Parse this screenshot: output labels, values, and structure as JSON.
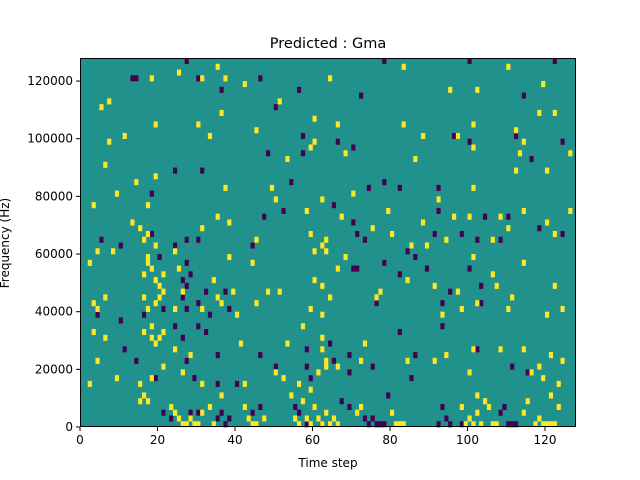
{
  "chart_data": {
    "type": "heatmap",
    "title": "Predicted : Gma",
    "xlabel": "Time step",
    "ylabel": "Frequency (Hz)",
    "xlim": [
      0,
      128
    ],
    "ylim": [
      0,
      128000
    ],
    "xticks": [
      0,
      20,
      40,
      60,
      80,
      100,
      120
    ],
    "yticks": [
      0,
      20000,
      40000,
      60000,
      80000,
      100000,
      120000
    ],
    "bin_size": {
      "x": 1,
      "y": 2000
    },
    "grid": false,
    "legend": "none",
    "colors": {
      "low": "#440154",
      "mid": "#21918c",
      "high": "#fde725"
    },
    "background_level": "mid",
    "cells_low": [
      [
        13,
        120000
      ],
      [
        14,
        120000
      ],
      [
        27,
        126000
      ],
      [
        30,
        120000
      ],
      [
        36,
        116000
      ],
      [
        46,
        120000
      ],
      [
        50,
        110000
      ],
      [
        56,
        116000
      ],
      [
        72,
        114000
      ],
      [
        78,
        126000
      ],
      [
        100,
        126000
      ],
      [
        114,
        114000
      ],
      [
        122,
        126000
      ],
      [
        57,
        100000
      ],
      [
        66,
        98000
      ],
      [
        70,
        96000
      ],
      [
        96,
        100000
      ],
      [
        97,
        100000
      ],
      [
        100,
        98000
      ],
      [
        112,
        100000
      ],
      [
        124,
        98000
      ],
      [
        48,
        94000
      ],
      [
        57,
        94000
      ],
      [
        116,
        92000
      ],
      [
        54,
        84000
      ],
      [
        74,
        82000
      ],
      [
        78,
        84000
      ],
      [
        82,
        82000
      ],
      [
        92,
        82000
      ],
      [
        18,
        80000
      ],
      [
        24,
        88000
      ],
      [
        31,
        88000
      ],
      [
        47,
        72000
      ],
      [
        52,
        74000
      ],
      [
        65,
        76000
      ],
      [
        92,
        74000
      ],
      [
        104,
        72000
      ],
      [
        110,
        72000
      ],
      [
        118,
        68000
      ],
      [
        18,
        66000
      ],
      [
        27,
        64000
      ],
      [
        30,
        64000
      ],
      [
        44,
        62000
      ],
      [
        70,
        70000
      ],
      [
        71,
        66000
      ],
      [
        73,
        64000
      ],
      [
        91,
        66000
      ],
      [
        98,
        66000
      ],
      [
        102,
        64000
      ],
      [
        124,
        66000
      ],
      [
        5,
        64000
      ],
      [
        10,
        62000
      ],
      [
        20,
        58000
      ],
      [
        24,
        62000
      ],
      [
        27,
        56000
      ],
      [
        70,
        54000
      ],
      [
        71,
        54000
      ],
      [
        78,
        56000
      ],
      [
        82,
        52000
      ],
      [
        84,
        60000
      ],
      [
        86,
        58000
      ],
      [
        89,
        54000
      ],
      [
        100,
        54000
      ],
      [
        103,
        48000
      ],
      [
        108,
        64000
      ],
      [
        26,
        50000
      ],
      [
        27,
        48000
      ],
      [
        28,
        52000
      ],
      [
        26,
        44000
      ],
      [
        27,
        40000
      ],
      [
        30,
        42000
      ],
      [
        32,
        46000
      ],
      [
        37,
        46000
      ],
      [
        4,
        38000
      ],
      [
        10,
        36000
      ],
      [
        16,
        38000
      ],
      [
        21,
        40000
      ],
      [
        24,
        34000
      ],
      [
        33,
        38000
      ],
      [
        38,
        40000
      ],
      [
        76,
        42000
      ],
      [
        93,
        42000
      ],
      [
        95,
        46000
      ],
      [
        103,
        42000
      ],
      [
        11,
        26000
      ],
      [
        14,
        22000
      ],
      [
        26,
        30000
      ],
      [
        27,
        22000
      ],
      [
        30,
        34000
      ],
      [
        32,
        32000
      ],
      [
        35,
        24000
      ],
      [
        46,
        24000
      ],
      [
        58,
        26000
      ],
      [
        64,
        28000
      ],
      [
        65,
        22000
      ],
      [
        69,
        24000
      ],
      [
        75,
        20000
      ],
      [
        82,
        32000
      ],
      [
        86,
        24000
      ],
      [
        93,
        34000
      ],
      [
        102,
        26000
      ],
      [
        19,
        16000
      ],
      [
        29,
        16000
      ],
      [
        35,
        14000
      ],
      [
        40,
        14000
      ],
      [
        50,
        20000
      ],
      [
        58,
        20000
      ],
      [
        59,
        16000
      ],
      [
        69,
        18000
      ],
      [
        79,
        10000
      ],
      [
        85,
        16000
      ],
      [
        111,
        20000
      ],
      [
        115,
        18000
      ],
      [
        128,
        14000
      ],
      [
        21,
        4000
      ],
      [
        23,
        2000
      ],
      [
        28,
        4000
      ],
      [
        30,
        4000
      ],
      [
        35,
        2000
      ],
      [
        36,
        4000
      ],
      [
        37,
        0
      ],
      [
        38,
        2000
      ],
      [
        44,
        4000
      ],
      [
        46,
        6000
      ],
      [
        55,
        6000
      ],
      [
        56,
        4000
      ],
      [
        58,
        0
      ],
      [
        62,
        0
      ],
      [
        67,
        8000
      ],
      [
        69,
        6000
      ],
      [
        73,
        2000
      ],
      [
        74,
        0
      ],
      [
        75,
        2000
      ],
      [
        76,
        0
      ],
      [
        77,
        0
      ],
      [
        78,
        0
      ],
      [
        92,
        0
      ],
      [
        93,
        6000
      ],
      [
        94,
        2000
      ],
      [
        95,
        0
      ],
      [
        98,
        0
      ],
      [
        108,
        4000
      ],
      [
        109,
        6000
      ],
      [
        110,
        0
      ],
      [
        111,
        0
      ],
      [
        112,
        0
      ]
    ],
    "cells_high": [
      [
        18,
        120000
      ],
      [
        25,
        122000
      ],
      [
        31,
        120000
      ],
      [
        35,
        124000
      ],
      [
        37,
        120000
      ],
      [
        42,
        118000
      ],
      [
        64,
        120000
      ],
      [
        83,
        124000
      ],
      [
        95,
        116000
      ],
      [
        102,
        116000
      ],
      [
        110,
        124000
      ],
      [
        119,
        118000
      ],
      [
        5,
        110000
      ],
      [
        7,
        112000
      ],
      [
        11,
        100000
      ],
      [
        19,
        104000
      ],
      [
        33,
        100000
      ],
      [
        36,
        108000
      ],
      [
        51,
        112000
      ],
      [
        60,
        106000
      ],
      [
        66,
        104000
      ],
      [
        83,
        104000
      ],
      [
        97,
        100000
      ],
      [
        101,
        104000
      ],
      [
        112,
        102000
      ],
      [
        118,
        108000
      ],
      [
        122,
        108000
      ],
      [
        6,
        90000
      ],
      [
        7,
        98000
      ],
      [
        30,
        104000
      ],
      [
        45,
        102000
      ],
      [
        53,
        92000
      ],
      [
        59,
        96000
      ],
      [
        60,
        98000
      ],
      [
        68,
        94000
      ],
      [
        86,
        92000
      ],
      [
        88,
        100000
      ],
      [
        101,
        96000
      ],
      [
        113,
        94000
      ],
      [
        114,
        98000
      ],
      [
        126,
        94000
      ],
      [
        9,
        80000
      ],
      [
        14,
        84000
      ],
      [
        19,
        86000
      ],
      [
        37,
        82000
      ],
      [
        49,
        82000
      ],
      [
        62,
        78000
      ],
      [
        70,
        80000
      ],
      [
        92,
        78000
      ],
      [
        101,
        82000
      ],
      [
        112,
        88000
      ],
      [
        120,
        88000
      ],
      [
        3,
        76000
      ],
      [
        13,
        70000
      ],
      [
        17,
        76000
      ],
      [
        35,
        72000
      ],
      [
        38,
        70000
      ],
      [
        50,
        78000
      ],
      [
        58,
        74000
      ],
      [
        67,
        72000
      ],
      [
        79,
        74000
      ],
      [
        96,
        72000
      ],
      [
        100,
        72000
      ],
      [
        108,
        72000
      ],
      [
        114,
        74000
      ],
      [
        126,
        74000
      ],
      [
        15,
        68000
      ],
      [
        17,
        66000
      ],
      [
        19,
        62000
      ],
      [
        31,
        68000
      ],
      [
        45,
        64000
      ],
      [
        59,
        66000
      ],
      [
        63,
        64000
      ],
      [
        63,
        60000
      ],
      [
        75,
        68000
      ],
      [
        80,
        66000
      ],
      [
        88,
        70000
      ],
      [
        94,
        64000
      ],
      [
        106,
        64000
      ],
      [
        110,
        68000
      ],
      [
        120,
        70000
      ],
      [
        122,
        66000
      ],
      [
        2,
        56000
      ],
      [
        4,
        60000
      ],
      [
        8,
        60000
      ],
      [
        16,
        64000
      ],
      [
        17,
        58000
      ],
      [
        24,
        60000
      ],
      [
        25,
        54000
      ],
      [
        38,
        58000
      ],
      [
        44,
        56000
      ],
      [
        60,
        60000
      ],
      [
        62,
        62000
      ],
      [
        66,
        54000
      ],
      [
        68,
        58000
      ],
      [
        85,
        62000
      ],
      [
        89,
        62000
      ],
      [
        101,
        58000
      ],
      [
        106,
        52000
      ],
      [
        114,
        56000
      ],
      [
        16,
        52000
      ],
      [
        17,
        56000
      ],
      [
        18,
        54000
      ],
      [
        19,
        50000
      ],
      [
        20,
        48000
      ],
      [
        21,
        52000
      ],
      [
        21,
        46000
      ],
      [
        34,
        50000
      ],
      [
        35,
        44000
      ],
      [
        39,
        46000
      ],
      [
        48,
        46000
      ],
      [
        51,
        46000
      ],
      [
        60,
        50000
      ],
      [
        62,
        48000
      ],
      [
        64,
        44000
      ],
      [
        77,
        46000
      ],
      [
        84,
        50000
      ],
      [
        91,
        48000
      ],
      [
        97,
        46000
      ],
      [
        107,
        48000
      ],
      [
        111,
        44000
      ],
      [
        122,
        48000
      ],
      [
        3,
        42000
      ],
      [
        4,
        40000
      ],
      [
        6,
        44000
      ],
      [
        16,
        44000
      ],
      [
        17,
        40000
      ],
      [
        19,
        42000
      ],
      [
        20,
        44000
      ],
      [
        24,
        40000
      ],
      [
        26,
        46000
      ],
      [
        31,
        40000
      ],
      [
        36,
        42000
      ],
      [
        40,
        38000
      ],
      [
        45,
        42000
      ],
      [
        59,
        40000
      ],
      [
        62,
        38000
      ],
      [
        76,
        44000
      ],
      [
        93,
        38000
      ],
      [
        98,
        40000
      ],
      [
        102,
        42000
      ],
      [
        110,
        40000
      ],
      [
        120,
        38000
      ],
      [
        124,
        40000
      ],
      [
        3,
        32000
      ],
      [
        6,
        30000
      ],
      [
        16,
        32000
      ],
      [
        18,
        34000
      ],
      [
        18,
        30000
      ],
      [
        19,
        28000
      ],
      [
        20,
        30000
      ],
      [
        21,
        32000
      ],
      [
        24,
        26000
      ],
      [
        28,
        24000
      ],
      [
        41,
        28000
      ],
      [
        53,
        28000
      ],
      [
        57,
        34000
      ],
      [
        62,
        26000
      ],
      [
        62,
        30000
      ],
      [
        63,
        22000
      ],
      [
        73,
        28000
      ],
      [
        84,
        22000
      ],
      [
        94,
        24000
      ],
      [
        101,
        26000
      ],
      [
        108,
        26000
      ],
      [
        114,
        26000
      ],
      [
        118,
        20000
      ],
      [
        121,
        24000
      ],
      [
        124,
        22000
      ],
      [
        2,
        14000
      ],
      [
        4,
        22000
      ],
      [
        9,
        16000
      ],
      [
        15,
        14000
      ],
      [
        18,
        16000
      ],
      [
        21,
        20000
      ],
      [
        26,
        18000
      ],
      [
        31,
        14000
      ],
      [
        36,
        10000
      ],
      [
        42,
        14000
      ],
      [
        50,
        18000
      ],
      [
        52,
        16000
      ],
      [
        56,
        14000
      ],
      [
        59,
        12000
      ],
      [
        61,
        18000
      ],
      [
        63,
        20000
      ],
      [
        66,
        20000
      ],
      [
        72,
        22000
      ],
      [
        91,
        22000
      ],
      [
        100,
        18000
      ],
      [
        102,
        10000
      ],
      [
        116,
        18000
      ],
      [
        119,
        16000
      ],
      [
        121,
        10000
      ],
      [
        123,
        14000
      ],
      [
        15,
        8000
      ],
      [
        16,
        10000
      ],
      [
        17,
        8000
      ],
      [
        23,
        6000
      ],
      [
        24,
        4000
      ],
      [
        25,
        2000
      ],
      [
        26,
        0
      ],
      [
        27,
        0
      ],
      [
        28,
        2000
      ],
      [
        29,
        0
      ],
      [
        30,
        0
      ],
      [
        31,
        4000
      ],
      [
        33,
        6000
      ],
      [
        34,
        0
      ],
      [
        42,
        6000
      ],
      [
        43,
        2000
      ],
      [
        44,
        0
      ],
      [
        45,
        0
      ],
      [
        47,
        2000
      ],
      [
        54,
        10000
      ],
      [
        55,
        2000
      ],
      [
        56,
        0
      ],
      [
        57,
        8000
      ],
      [
        58,
        2000
      ],
      [
        59,
        0
      ],
      [
        60,
        6000
      ],
      [
        61,
        2000
      ],
      [
        62,
        0
      ],
      [
        63,
        4000
      ],
      [
        64,
        0
      ],
      [
        65,
        2000
      ],
      [
        66,
        0
      ],
      [
        71,
        4000
      ],
      [
        72,
        6000
      ],
      [
        80,
        4000
      ],
      [
        81,
        0
      ],
      [
        82,
        0
      ],
      [
        83,
        0
      ],
      [
        98,
        6000
      ],
      [
        99,
        0
      ],
      [
        100,
        2000
      ],
      [
        101,
        0
      ],
      [
        102,
        4000
      ],
      [
        103,
        0
      ],
      [
        104,
        8000
      ],
      [
        105,
        6000
      ],
      [
        106,
        0
      ],
      [
        107,
        0
      ],
      [
        114,
        4000
      ],
      [
        115,
        8000
      ],
      [
        117,
        0
      ],
      [
        118,
        2000
      ],
      [
        119,
        0
      ],
      [
        120,
        0
      ],
      [
        121,
        0
      ],
      [
        122,
        0
      ],
      [
        123,
        6000
      ]
    ]
  }
}
